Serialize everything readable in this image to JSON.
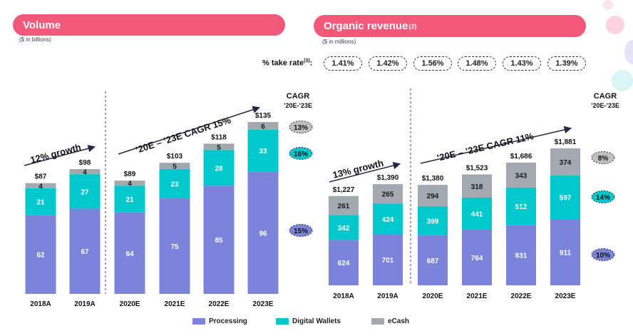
{
  "colors": {
    "banner": "#f2587a",
    "processing": "#7b83db",
    "wallets": "#00c8cc",
    "ecash": "#a3a9b1",
    "cagr_gray": "#bfbfbf"
  },
  "volume": {
    "title": "Volume",
    "unit": "($ in billions)",
    "cagr_header_1": "CAGR",
    "cagr_header_2": "’20E-’23E",
    "growth_hist": "12% growth",
    "growth_proj": "’20E – ’23E CAGR 15%",
    "cagr": {
      "ecash": "13%",
      "wallets": "16%",
      "processing": "15%"
    }
  },
  "revenue": {
    "title": "Organic revenue",
    "title_sup": "(2)",
    "unit": "($ in millions)",
    "take_rate_label": "% take rate",
    "take_rate_sup": "(3)",
    "take_rates": [
      "1.41%",
      "1.42%",
      "1.56%",
      "1.48%",
      "1.43%",
      "1.39%"
    ],
    "cagr_header_1": "CAGR",
    "cagr_header_2": "’20E-’23E",
    "growth_hist": "13% growth",
    "growth_proj": "’20E – ’23E CAGR 11%",
    "cagr": {
      "ecash": "8%",
      "wallets": "14%",
      "processing": "10%"
    }
  },
  "legend": {
    "processing": "Processing",
    "wallets": "Digital Wallets",
    "ecash": "eCash"
  },
  "chart_data": [
    {
      "type": "bar",
      "title": "Volume",
      "stacked": true,
      "categories": [
        "2018A",
        "2019A",
        "2020E",
        "2021E",
        "2022E",
        "2023E"
      ],
      "series": [
        {
          "name": "Processing",
          "values": [
            62,
            67,
            64,
            75,
            85,
            96
          ]
        },
        {
          "name": "Digital Wallets",
          "values": [
            21,
            27,
            21,
            23,
            28,
            33
          ]
        },
        {
          "name": "eCash",
          "values": [
            4,
            4,
            4,
            5,
            5,
            6
          ]
        }
      ],
      "totals": [
        "$87",
        "$98",
        "$89",
        "$103",
        "$118",
        "$135"
      ],
      "ylim": [
        0,
        135
      ]
    },
    {
      "type": "bar",
      "title": "Organic revenue",
      "stacked": true,
      "categories": [
        "2018A",
        "2019A",
        "2020E",
        "2021E",
        "2022E",
        "2023E"
      ],
      "series": [
        {
          "name": "Processing",
          "values": [
            624,
            701,
            687,
            764,
            831,
            911
          ]
        },
        {
          "name": "Digital Wallets",
          "values": [
            342,
            424,
            399,
            441,
            512,
            597
          ]
        },
        {
          "name": "eCash",
          "values": [
            261,
            265,
            294,
            318,
            343,
            374
          ]
        }
      ],
      "totals": [
        "$1,227",
        "$1,390",
        "$1,380",
        "$1,523",
        "$1,686",
        "$1,881"
      ],
      "ylim": [
        0,
        1881
      ]
    }
  ]
}
